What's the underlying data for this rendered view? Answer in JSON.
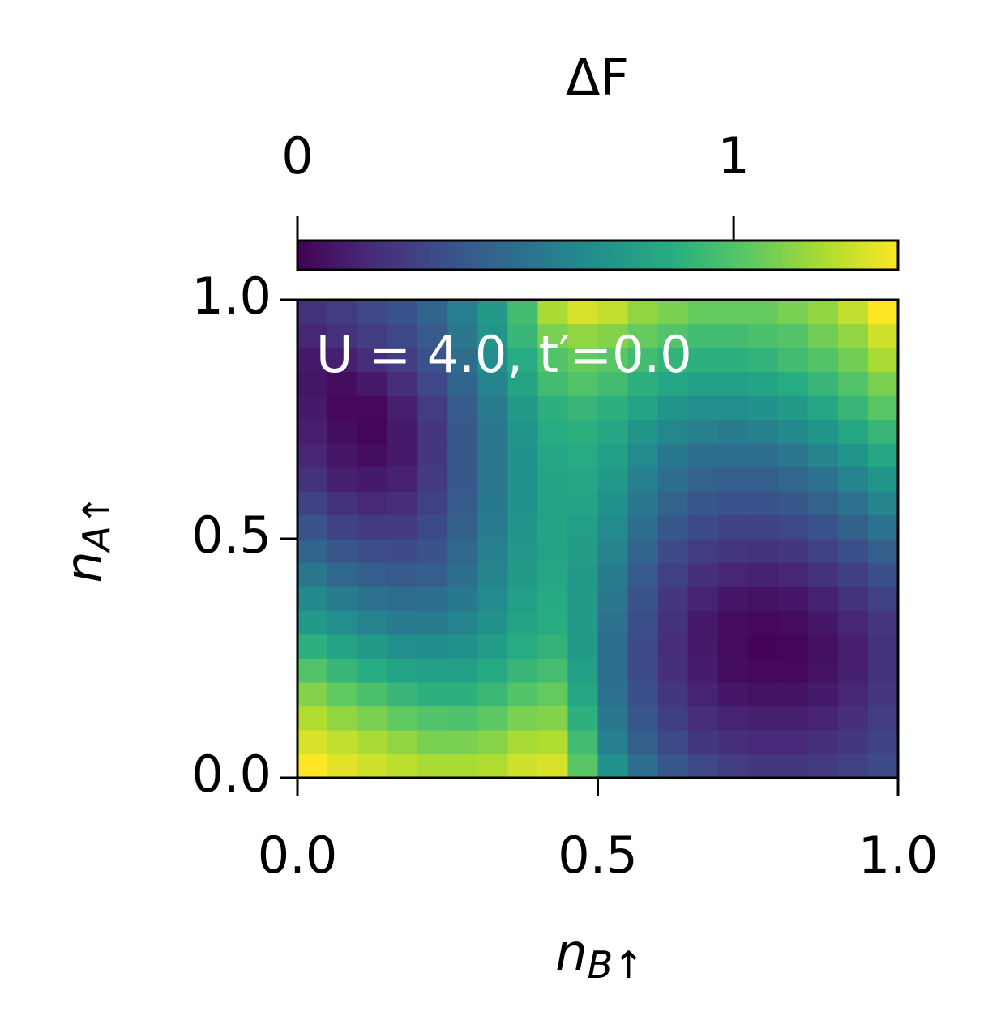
{
  "chart_data": {
    "type": "heatmap",
    "title": "ΔF",
    "annotation": "U = 4.0, t′=0.0",
    "xlabel": "n",
    "xlabel_sub": "B↑",
    "ylabel": "n",
    "ylabel_sub": "A↑",
    "xlim": [
      0,
      1
    ],
    "ylim": [
      0,
      1
    ],
    "xticks": [
      {
        "value": 0,
        "label": "0.0"
      },
      {
        "value": 0.5,
        "label": "0.5"
      },
      {
        "value": 1,
        "label": "1.0"
      }
    ],
    "yticks": [
      {
        "value": 0,
        "label": "0.0"
      },
      {
        "value": 0.5,
        "label": "0.5"
      },
      {
        "value": 1,
        "label": "1.0"
      }
    ],
    "colormap": "viridis",
    "zlim": [
      0,
      1.377
    ],
    "colorbar_ticks": [
      0,
      1
    ],
    "z": [
      [
        1.38,
        1.32,
        1.28,
        1.24,
        1.2,
        1.2,
        1.22,
        1.28,
        1.3,
        1.02,
        0.7,
        0.5,
        0.38,
        0.3,
        0.25,
        0.22,
        0.22,
        0.24,
        0.27,
        0.32
      ],
      [
        1.3,
        1.25,
        1.2,
        1.15,
        1.1,
        1.1,
        1.13,
        1.2,
        1.22,
        0.95,
        0.6,
        0.42,
        0.31,
        0.23,
        0.19,
        0.17,
        0.17,
        0.19,
        0.23,
        0.28
      ],
      [
        1.22,
        1.15,
        1.1,
        1.04,
        1.0,
        0.99,
        1.03,
        1.1,
        1.12,
        0.88,
        0.56,
        0.38,
        0.26,
        0.18,
        0.14,
        0.12,
        0.12,
        0.14,
        0.19,
        0.25
      ],
      [
        1.12,
        1.04,
        0.98,
        0.92,
        0.88,
        0.88,
        0.93,
        1.0,
        1.05,
        0.82,
        0.52,
        0.34,
        0.22,
        0.14,
        0.09,
        0.07,
        0.07,
        0.1,
        0.15,
        0.22
      ],
      [
        1.0,
        0.92,
        0.86,
        0.8,
        0.77,
        0.78,
        0.84,
        0.92,
        0.96,
        0.78,
        0.5,
        0.32,
        0.19,
        0.11,
        0.05,
        0.03,
        0.03,
        0.07,
        0.12,
        0.2
      ],
      [
        0.88,
        0.8,
        0.74,
        0.69,
        0.67,
        0.7,
        0.76,
        0.85,
        0.9,
        0.75,
        0.5,
        0.32,
        0.18,
        0.1,
        0.04,
        0.01,
        0.02,
        0.06,
        0.12,
        0.2
      ],
      [
        0.75,
        0.68,
        0.62,
        0.58,
        0.58,
        0.62,
        0.7,
        0.8,
        0.86,
        0.74,
        0.52,
        0.33,
        0.2,
        0.1,
        0.05,
        0.03,
        0.04,
        0.09,
        0.15,
        0.22
      ],
      [
        0.65,
        0.57,
        0.52,
        0.49,
        0.5,
        0.56,
        0.66,
        0.78,
        0.84,
        0.74,
        0.55,
        0.36,
        0.22,
        0.14,
        0.09,
        0.07,
        0.09,
        0.13,
        0.2,
        0.27
      ],
      [
        0.55,
        0.47,
        0.42,
        0.4,
        0.42,
        0.5,
        0.62,
        0.75,
        0.82,
        0.75,
        0.58,
        0.4,
        0.27,
        0.19,
        0.15,
        0.13,
        0.15,
        0.2,
        0.26,
        0.34
      ],
      [
        0.45,
        0.37,
        0.33,
        0.32,
        0.36,
        0.47,
        0.6,
        0.73,
        0.8,
        0.76,
        0.62,
        0.45,
        0.32,
        0.25,
        0.22,
        0.2,
        0.22,
        0.27,
        0.34,
        0.42
      ],
      [
        0.36,
        0.28,
        0.24,
        0.24,
        0.31,
        0.43,
        0.58,
        0.72,
        0.8,
        0.78,
        0.66,
        0.5,
        0.38,
        0.32,
        0.28,
        0.28,
        0.3,
        0.35,
        0.43,
        0.52
      ],
      [
        0.28,
        0.2,
        0.16,
        0.18,
        0.27,
        0.4,
        0.56,
        0.7,
        0.8,
        0.8,
        0.7,
        0.55,
        0.44,
        0.38,
        0.35,
        0.35,
        0.38,
        0.44,
        0.52,
        0.62
      ],
      [
        0.2,
        0.12,
        0.1,
        0.13,
        0.24,
        0.38,
        0.55,
        0.7,
        0.8,
        0.82,
        0.74,
        0.6,
        0.5,
        0.44,
        0.42,
        0.42,
        0.46,
        0.52,
        0.62,
        0.72
      ],
      [
        0.15,
        0.08,
        0.05,
        0.1,
        0.22,
        0.38,
        0.55,
        0.7,
        0.82,
        0.85,
        0.78,
        0.66,
        0.56,
        0.5,
        0.5,
        0.5,
        0.55,
        0.62,
        0.72,
        0.82
      ],
      [
        0.12,
        0.05,
        0.02,
        0.1,
        0.22,
        0.38,
        0.55,
        0.72,
        0.85,
        0.88,
        0.82,
        0.72,
        0.64,
        0.6,
        0.58,
        0.6,
        0.65,
        0.72,
        0.82,
        0.92
      ],
      [
        0.1,
        0.03,
        0.03,
        0.12,
        0.25,
        0.4,
        0.58,
        0.75,
        0.88,
        0.92,
        0.88,
        0.8,
        0.72,
        0.68,
        0.68,
        0.7,
        0.75,
        0.82,
        0.92,
        1.02
      ],
      [
        0.08,
        0.05,
        0.1,
        0.18,
        0.3,
        0.45,
        0.62,
        0.8,
        0.95,
        1.0,
        0.95,
        0.88,
        0.82,
        0.78,
        0.78,
        0.8,
        0.85,
        0.92,
        1.0,
        1.1
      ],
      [
        0.1,
        0.12,
        0.18,
        0.25,
        0.35,
        0.5,
        0.68,
        0.85,
        1.0,
        1.05,
        1.02,
        0.95,
        0.9,
        0.88,
        0.88,
        0.9,
        0.95,
        1.0,
        1.08,
        1.2
      ],
      [
        0.15,
        0.2,
        0.25,
        0.3,
        0.4,
        0.55,
        0.72,
        0.92,
        1.1,
        1.15,
        1.12,
        1.05,
        1.0,
        0.95,
        0.95,
        0.98,
        1.0,
        1.08,
        1.15,
        1.28
      ],
      [
        0.2,
        0.25,
        0.3,
        0.35,
        0.45,
        0.6,
        0.75,
        0.95,
        1.2,
        1.3,
        1.25,
        1.15,
        1.1,
        1.05,
        1.05,
        1.05,
        1.1,
        1.15,
        1.25,
        1.38
      ]
    ]
  }
}
